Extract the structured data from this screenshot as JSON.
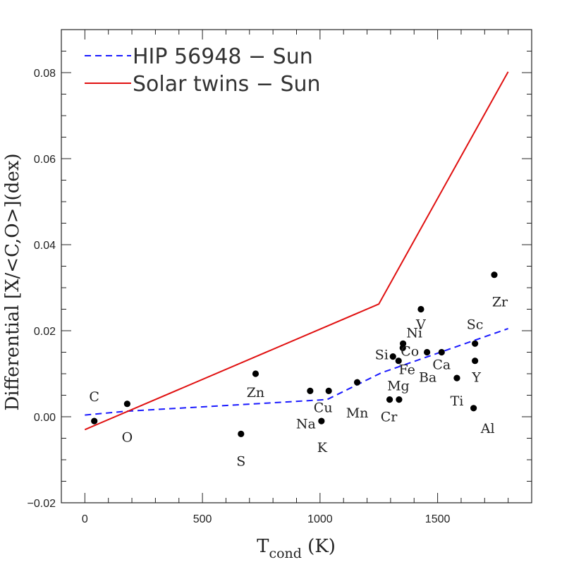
{
  "chart_data": {
    "type": "scatter",
    "xlabel": "T",
    "xlabel_sub": "cond",
    "xlabel_unit": " (K)",
    "ylabel": "Differential [X/<C,O>](dex)",
    "xlim": [
      -100,
      1900
    ],
    "ylim": [
      -0.02,
      0.09
    ],
    "x_ticks": [
      {
        "value": 0,
        "label": "0"
      },
      {
        "value": 500,
        "label": "500"
      },
      {
        "value": 1000,
        "label": "1000"
      },
      {
        "value": 1500,
        "label": "1500"
      }
    ],
    "x_minor_step": 100,
    "y_ticks": [
      {
        "value": -0.02,
        "label": "−0.02"
      },
      {
        "value": 0.0,
        "label": "0.00"
      },
      {
        "value": 0.02,
        "label": "0.02"
      },
      {
        "value": 0.04,
        "label": "0.04"
      },
      {
        "value": 0.06,
        "label": "0.06"
      },
      {
        "value": 0.08,
        "label": "0.08"
      }
    ],
    "y_minor_step": 0.005,
    "grid": false,
    "legend_position": "top-left",
    "series": [
      {
        "name": "HIP 56948 − Sun",
        "style": "dashed",
        "color": "#1a1aff",
        "x": [
          0,
          180,
          660,
          1030,
          1260,
          1800
        ],
        "y": [
          0.0004,
          0.0013,
          0.0028,
          0.004,
          0.0102,
          0.0205
        ]
      },
      {
        "name": "Solar twins − Sun",
        "style": "solid",
        "color": "#e01010",
        "x": [
          0,
          1250,
          1800
        ],
        "y": [
          -0.003,
          0.0262,
          0.0802
        ]
      }
    ],
    "points": [
      {
        "label": "C",
        "x": 40,
        "y": -0.001,
        "dx": 0,
        "dy": -28
      },
      {
        "label": "O",
        "x": 180,
        "y": 0.003,
        "dx": 0,
        "dy": 54
      },
      {
        "label": "S",
        "x": 664,
        "y": -0.004,
        "dx": 0,
        "dy": 45
      },
      {
        "label": "Zn",
        "x": 726,
        "y": 0.01,
        "dx": 0,
        "dy": 33
      },
      {
        "label": "Na",
        "x": 958,
        "y": 0.006,
        "dx": -6,
        "dy": 53
      },
      {
        "label": "K",
        "x": 1006,
        "y": -0.001,
        "dx": 1,
        "dy": 44
      },
      {
        "label": "Cu",
        "x": 1037,
        "y": 0.006,
        "dx": -8,
        "dy": 30
      },
      {
        "label": "Mn",
        "x": 1158,
        "y": 0.008,
        "dx": 0,
        "dy": 50
      },
      {
        "label": "Cr",
        "x": 1296,
        "y": 0.004,
        "dx": -1,
        "dy": 31
      },
      {
        "label": "Mg",
        "x": 1336,
        "y": 0.004,
        "dx": -1,
        "dy": -13
      },
      {
        "label": "Si",
        "x": 1310,
        "y": 0.014,
        "dx": -16,
        "dy": 4
      },
      {
        "label": "Fe",
        "x": 1334,
        "y": 0.013,
        "dx": 12,
        "dy": 19
      },
      {
        "label": "Co",
        "x": 1352,
        "y": 0.016,
        "dx": 10,
        "dy": 11
      },
      {
        "label": "Ni",
        "x": 1353,
        "y": 0.017,
        "dx": 16,
        "dy": -9
      },
      {
        "label": "Ba",
        "x": 1455,
        "y": 0.015,
        "dx": 1,
        "dy": 42
      },
      {
        "label": "V",
        "x": 1429,
        "y": 0.025,
        "dx": 0,
        "dy": 28
      },
      {
        "label": "Ca",
        "x": 1517,
        "y": 0.015,
        "dx": 0,
        "dy": 24
      },
      {
        "label": "Ti",
        "x": 1582,
        "y": 0.009,
        "dx": 0,
        "dy": 39
      },
      {
        "label": "Sc",
        "x": 1659,
        "y": 0.017,
        "dx": 0,
        "dy": -21
      },
      {
        "label": "Y",
        "x": 1659,
        "y": 0.013,
        "dx": 2,
        "dy": 30
      },
      {
        "label": "Al",
        "x": 1653,
        "y": 0.002,
        "dx": 20,
        "dy": 35
      },
      {
        "label": "Zr",
        "x": 1741,
        "y": 0.033,
        "dx": 8,
        "dy": 45
      }
    ]
  }
}
